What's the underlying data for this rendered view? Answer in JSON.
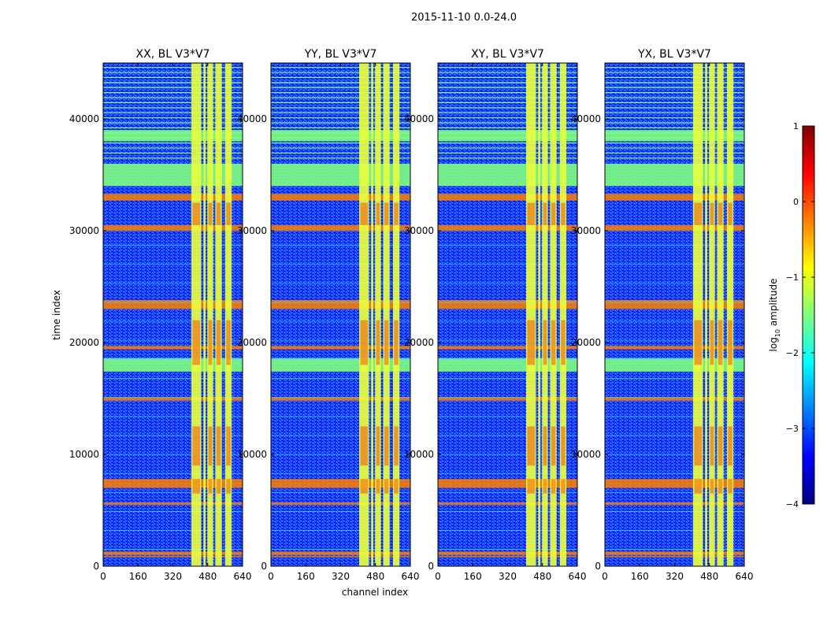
{
  "chart_data": {
    "type": "heatmap",
    "suptitle": "2015-11-10 0.0-24.0",
    "xlabel": "channel index",
    "ylabel": "time index",
    "xlim": [
      0,
      640
    ],
    "ylim": [
      0,
      45000
    ],
    "xticks": [
      "0",
      "160",
      "320",
      "480",
      "640"
    ],
    "yticks": [
      "0",
      "10000",
      "20000",
      "30000",
      "40000"
    ],
    "colorbar": {
      "label": "log10 amplitude",
      "label_base": "log",
      "label_sub": "10",
      "label_rest": " amplitude",
      "range": [
        -4,
        1
      ],
      "ticks": [
        "1",
        "0",
        "−1",
        "−2",
        "−3",
        "−4"
      ],
      "colors": [
        "#000080",
        "#0000ff",
        "#0080ff",
        "#00ffff",
        "#80ff80",
        "#ffff00",
        "#ff8000",
        "#ff0000",
        "#800000"
      ]
    },
    "panels": [
      {
        "title": "XX, BL V3*V7"
      },
      {
        "title": "YY, BL V3*V7"
      },
      {
        "title": "XY, BL V3*V7"
      },
      {
        "title": "YX, BL V3*V7"
      }
    ],
    "bright_channel_bands": [
      [
        405,
        450
      ],
      [
        460,
        470
      ],
      [
        478,
        505
      ],
      [
        515,
        545
      ],
      [
        560,
        590
      ]
    ],
    "flagged_time_bands": [
      [
        34000,
        36000
      ],
      [
        32700,
        33300
      ],
      [
        30000,
        30500
      ],
      [
        38000,
        39000
      ],
      [
        17400,
        18600
      ],
      [
        23000,
        23800
      ],
      [
        19400,
        19700
      ],
      [
        14800,
        15100
      ],
      [
        7000,
        7800
      ],
      [
        1000,
        1300
      ],
      [
        800,
        900
      ],
      [
        5500,
        5700
      ]
    ]
  }
}
